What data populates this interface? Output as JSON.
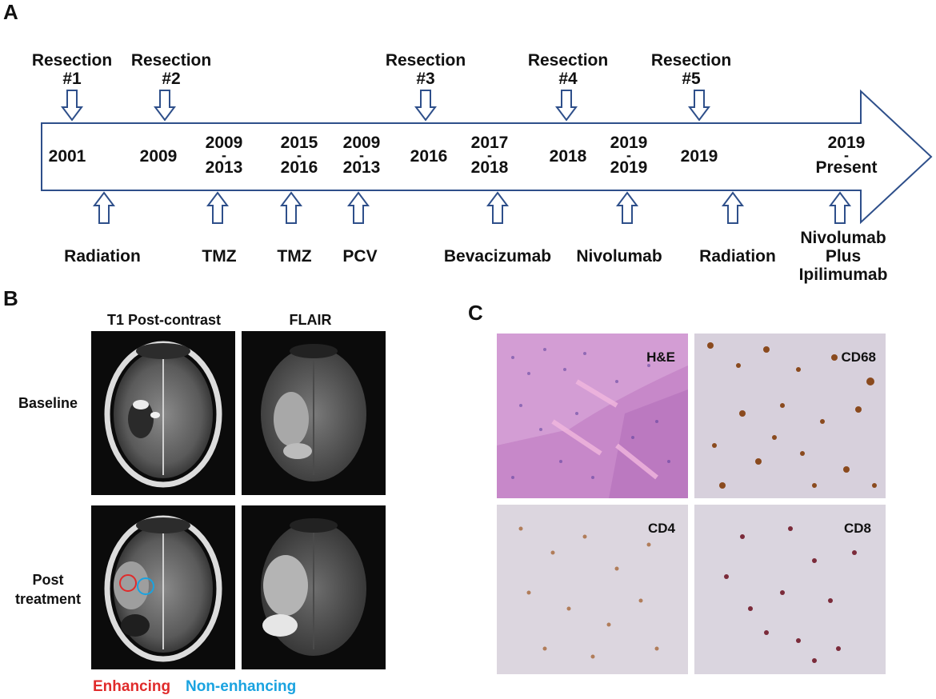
{
  "panel_a": {
    "letter": "A",
    "resections": [
      {
        "label": "Resection",
        "number": "#1"
      },
      {
        "label": "Resection",
        "number": "#2"
      },
      {
        "label": "Resection",
        "number": "#3"
      },
      {
        "label": "Resection",
        "number": "#4"
      },
      {
        "label": "Resection",
        "number": "#5"
      }
    ],
    "years": [
      {
        "top": "2001"
      },
      {
        "top": "2009"
      },
      {
        "top": "2009",
        "dash": "-",
        "bottom": "2013"
      },
      {
        "top": "2015",
        "dash": "-",
        "bottom": "2016"
      },
      {
        "top": "2009",
        "dash": "-",
        "bottom": "2013"
      },
      {
        "top": "2016"
      },
      {
        "top": "2017",
        "dash": "-",
        "bottom": "2018"
      },
      {
        "top": "2018"
      },
      {
        "top": "2019",
        "dash": "-",
        "bottom": "2019"
      },
      {
        "top": "2019"
      },
      {
        "top": "2019",
        "dash": "-",
        "bottom": "Present"
      }
    ],
    "treatments": [
      {
        "label": "Radiation"
      },
      {
        "label": "TMZ"
      },
      {
        "label": "TMZ"
      },
      {
        "label": "PCV"
      },
      {
        "label": "Bevacizumab"
      },
      {
        "label": "Nivolumab"
      },
      {
        "label": "Radiation"
      },
      {
        "label": "Nivolumab",
        "line2": "Plus",
        "line3": "Ipilimumab"
      }
    ]
  },
  "panel_b": {
    "letter": "B",
    "col_headers": [
      "T1 Post-contrast",
      "FLAIR"
    ],
    "row_labels": [
      {
        "line1": "Baseline"
      },
      {
        "line1": "Post",
        "line2": "treatment"
      }
    ],
    "legend": {
      "enhancing": "Enhancing",
      "non_enhancing": "Non-enhancing"
    },
    "colors": {
      "enhancing": "#e02b2b",
      "non_enhancing": "#1aa3e0"
    }
  },
  "panel_c": {
    "letter": "C",
    "stains": [
      "H&E",
      "CD68",
      "CD4",
      "CD8"
    ]
  },
  "colors": {
    "arrow_stroke": "#2e4f8a"
  }
}
